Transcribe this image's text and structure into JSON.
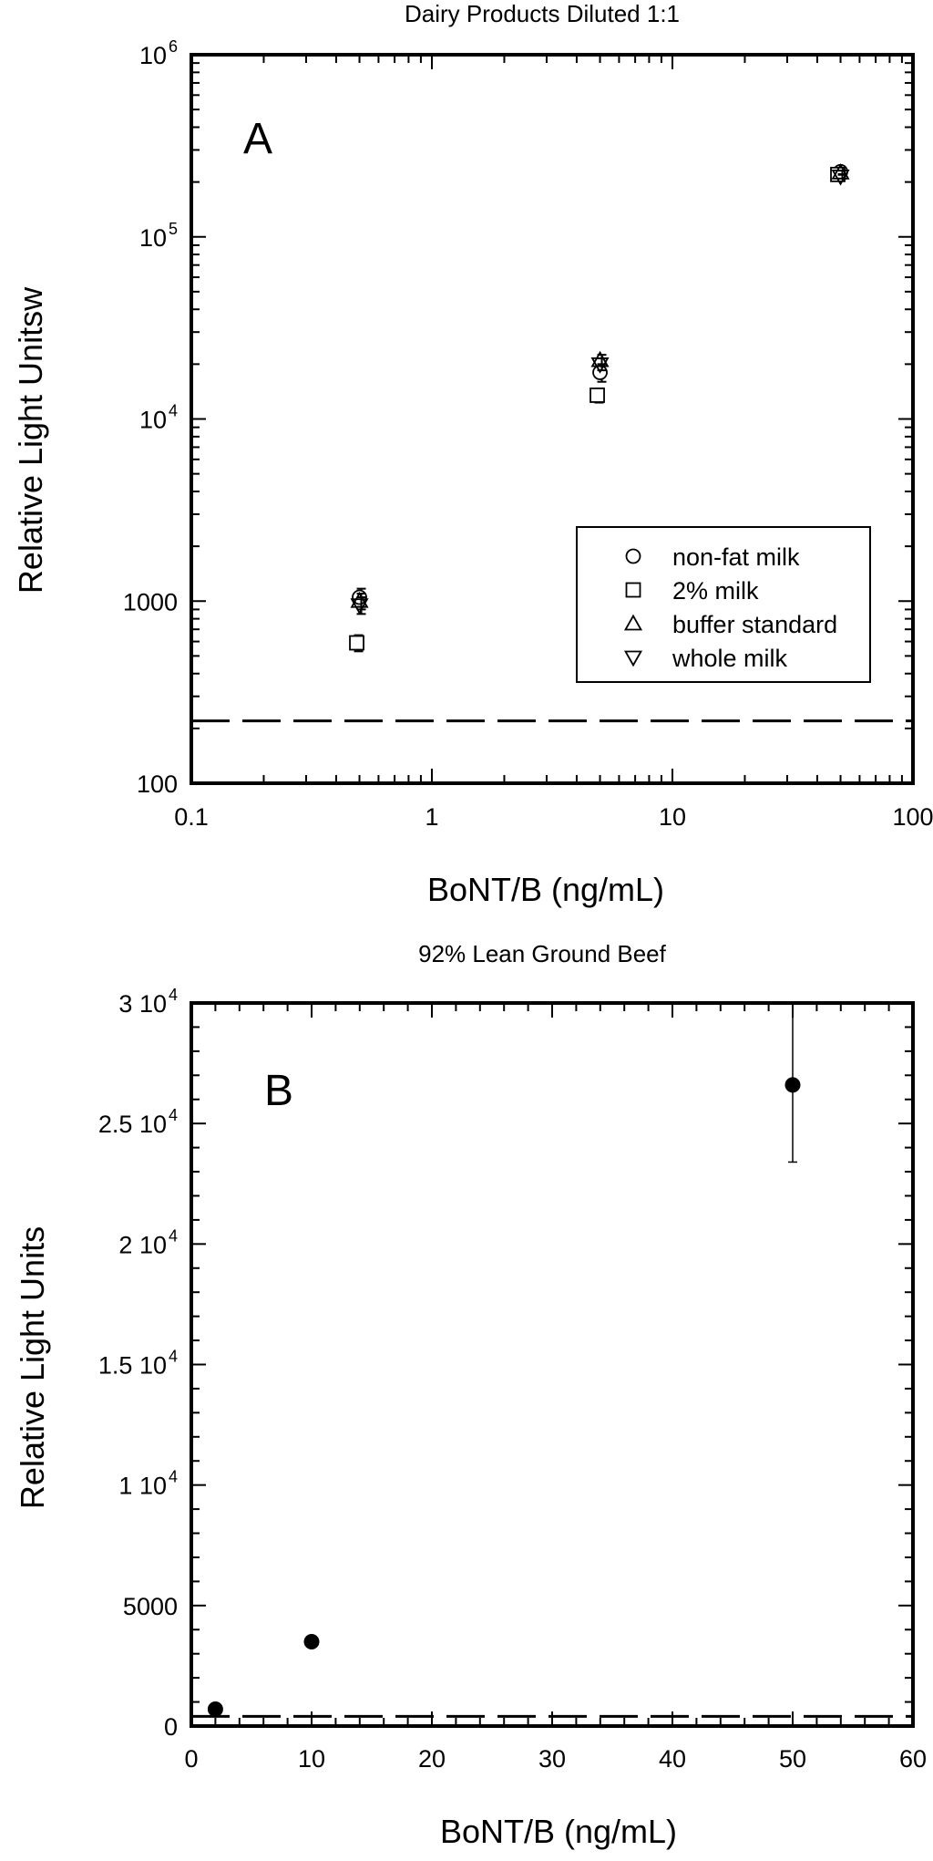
{
  "chart_data": [
    {
      "type": "scatter",
      "title": "Dairy Products  Diluted 1:1",
      "panel_label": "A",
      "xlabel": "BoNT/B (ng/mL)",
      "ylabel": "Relative Light Unitsw",
      "xscale": "log",
      "yscale": "log",
      "xlim": [
        0.1,
        100
      ],
      "ylim": [
        100,
        1000000
      ],
      "x_tick_labels": [
        "0.1",
        "1",
        "10",
        "100"
      ],
      "y_tick_labels": [
        {
          "base": "100",
          "exp": ""
        },
        {
          "base": "1000",
          "exp": ""
        },
        {
          "base": "10",
          "exp": "4"
        },
        {
          "base": "10",
          "exp": "5"
        },
        {
          "base": "10",
          "exp": "6"
        }
      ],
      "reference_line": {
        "y": 220,
        "style": "dashed"
      },
      "legend_position": "lower-right",
      "series": [
        {
          "name": "non-fat milk",
          "marker": "circle",
          "x": [
            0.5,
            5,
            50
          ],
          "y": [
            1050,
            18000,
            228000
          ],
          "err": [
            120,
            2000,
            8000
          ]
        },
        {
          "name": "2% milk",
          "marker": "square",
          "x": [
            0.5,
            5,
            50
          ],
          "y": [
            590,
            13500,
            220000
          ],
          "err": [
            60,
            1200,
            6000
          ]
        },
        {
          "name": "buffer standard",
          "marker": "triangle-up",
          "x": [
            0.5,
            5,
            50
          ],
          "y": [
            1000,
            21000,
            225000
          ],
          "err": [
            100,
            1500,
            6000
          ]
        },
        {
          "name": "whole milk",
          "marker": "triangle-down",
          "x": [
            0.5,
            5,
            50
          ],
          "y": [
            950,
            20000,
            215000
          ],
          "err": [
            100,
            1500,
            6000
          ]
        }
      ]
    },
    {
      "type": "scatter",
      "title": "92% Lean Ground Beef",
      "panel_label": "B",
      "xlabel": "BoNT/B (ng/mL)",
      "ylabel": "Relative Light Units",
      "xlim": [
        0,
        60
      ],
      "ylim": [
        0,
        30000
      ],
      "x_tick_labels": [
        "0",
        "10",
        "20",
        "30",
        "40",
        "50",
        "60"
      ],
      "y_tick_labels": [
        {
          "base": "0",
          "exp": ""
        },
        {
          "base": "5000",
          "exp": ""
        },
        {
          "base": "1 10",
          "exp": "4"
        },
        {
          "base": "1.5 10",
          "exp": "4"
        },
        {
          "base": "2 10",
          "exp": "4"
        },
        {
          "base": "2.5 10",
          "exp": "4"
        },
        {
          "base": "3 10",
          "exp": "4"
        }
      ],
      "reference_line": {
        "y": 400,
        "style": "dashed"
      },
      "series": [
        {
          "marker": "filled-circle",
          "x": [
            2,
            10,
            50
          ],
          "y": [
            700,
            3500,
            26600
          ],
          "err": [
            0,
            0,
            3200
          ]
        }
      ]
    }
  ]
}
